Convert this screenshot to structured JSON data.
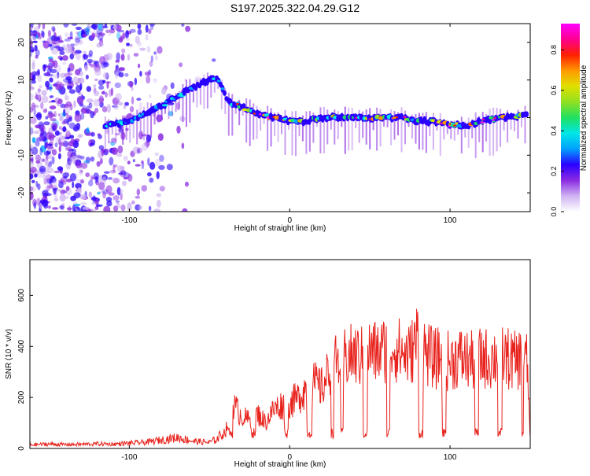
{
  "figure": {
    "title": "S197.2025.322.04.29.G12"
  },
  "chart_data": [
    {
      "type": "heatmap",
      "xlabel": "Height of straight line (km)",
      "ylabel": "Frequency (Hz)",
      "xlim": [
        -162,
        150
      ],
      "ylim": [
        -25,
        25
      ],
      "xticks": [
        -100,
        0,
        100
      ],
      "yticks": [
        -20,
        -10,
        0,
        10,
        20
      ],
      "colorbar": {
        "label": "Normalized spectral amplitude",
        "range": [
          0,
          0.93
        ],
        "ticks": [
          0.0,
          0.2,
          0.4,
          0.6,
          0.8
        ],
        "colors": [
          "#ffffff",
          "#cfb3f2",
          "#8a2be2",
          "#2a00ff",
          "#00a0ff",
          "#00e6e6",
          "#20e060",
          "#90e020",
          "#e0e000",
          "#ff9900",
          "#ff2000",
          "#ff0090",
          "#ff00ff"
        ]
      },
      "ridge": {
        "x": [
          -115,
          -100,
          -80,
          -65,
          -55,
          -50,
          -45,
          -42,
          -38,
          -30,
          -20,
          -10,
          0,
          10,
          20,
          30,
          40,
          50,
          60,
          70,
          80,
          90,
          100,
          110,
          120,
          130,
          140,
          148
        ],
        "y": [
          -2,
          -1,
          3,
          7,
          9,
          10,
          10,
          8,
          4,
          3,
          1,
          0,
          -1,
          -1,
          0,
          0,
          0,
          0,
          0,
          0,
          -1,
          -1,
          -2,
          -2,
          -1,
          0,
          0,
          1
        ]
      }
    },
    {
      "type": "line",
      "xlabel": "Height of straight line (km)",
      "ylabel": "SNR (10 * v/v)",
      "xlim": [
        -162,
        150
      ],
      "ylim": [
        0,
        740
      ],
      "xticks": [
        -100,
        0,
        100
      ],
      "yticks": [
        0,
        200,
        400,
        600
      ],
      "color": "#e8221c",
      "series": [
        {
          "name": "SNR",
          "x": [
            -162,
            -150,
            -140,
            -130,
            -120,
            -110,
            -100,
            -90,
            -80,
            -70,
            -60,
            -50,
            -45,
            -40,
            -35,
            -30,
            -25,
            -20,
            -15,
            -10,
            -5,
            0,
            5,
            10,
            15,
            20,
            25,
            30,
            35,
            40,
            45,
            50,
            55,
            60,
            65,
            70,
            75,
            80,
            85,
            90,
            95,
            100,
            105,
            110,
            115,
            120,
            125,
            130,
            135,
            140,
            145,
            148,
            150
          ],
          "values": [
            15,
            18,
            16,
            17,
            19,
            18,
            22,
            25,
            35,
            45,
            30,
            25,
            40,
            80,
            200,
            150,
            130,
            160,
            120,
            180,
            200,
            210,
            230,
            280,
            300,
            280,
            360,
            400,
            420,
            430,
            420,
            450,
            440,
            460,
            470,
            440,
            430,
            520,
            440,
            410,
            420,
            400,
            420,
            410,
            400,
            420,
            410,
            430,
            420,
            400,
            420,
            400,
            60
          ]
        }
      ]
    }
  ]
}
